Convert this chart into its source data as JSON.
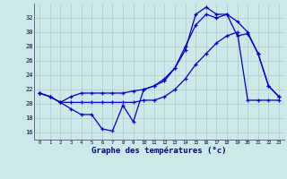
{
  "title": "Graphe des températures (°c)",
  "background_color": "#cce8e8",
  "grid_color": "#aacccc",
  "line_color": "#0000cc",
  "x_labels": [
    "0",
    "1",
    "2",
    "3",
    "4",
    "5",
    "6",
    "7",
    "8",
    "9",
    "10",
    "11",
    "12",
    "13",
    "14",
    "15",
    "16",
    "17",
    "18",
    "19",
    "20",
    "21",
    "22",
    "23"
  ],
  "ylim": [
    15.0,
    34.0
  ],
  "yticks": [
    16,
    18,
    20,
    22,
    24,
    26,
    28,
    30,
    32
  ],
  "line1_x": [
    0,
    1,
    2,
    3,
    4,
    5,
    6,
    7,
    8,
    9,
    10,
    11,
    12,
    13,
    14,
    15,
    16,
    17,
    18,
    19,
    20,
    21,
    22,
    23
  ],
  "line1_y": [
    21.5,
    21.0,
    20.2,
    19.3,
    18.5,
    18.5,
    16.5,
    16.2,
    19.8,
    17.5,
    22.0,
    22.5,
    23.2,
    25.0,
    27.5,
    32.5,
    33.5,
    32.5,
    32.5,
    31.5,
    30.0,
    27.0,
    22.5,
    21.0
  ],
  "line2_x": [
    0,
    1,
    2,
    3,
    4,
    5,
    6,
    7,
    8,
    9,
    10,
    11,
    12,
    13,
    14,
    15,
    16,
    17,
    18,
    19,
    20,
    21,
    22,
    23
  ],
  "line2_y": [
    21.5,
    21.0,
    20.2,
    21.0,
    21.5,
    21.5,
    21.5,
    21.5,
    21.5,
    21.8,
    22.0,
    22.5,
    23.5,
    25.0,
    28.0,
    31.0,
    32.5,
    32.0,
    32.5,
    29.5,
    29.8,
    27.0,
    22.5,
    21.0
  ],
  "line3_x": [
    0,
    1,
    2,
    3,
    4,
    5,
    6,
    7,
    8,
    9,
    10,
    11,
    12,
    13,
    14,
    15,
    16,
    17,
    18,
    19,
    20,
    21,
    22,
    23
  ],
  "line3_y": [
    21.5,
    21.0,
    20.2,
    20.2,
    20.2,
    20.2,
    20.2,
    20.2,
    20.2,
    20.2,
    20.5,
    20.5,
    21.0,
    22.0,
    23.5,
    25.5,
    27.0,
    28.5,
    29.5,
    30.0,
    20.5,
    20.5,
    20.5,
    20.5
  ]
}
